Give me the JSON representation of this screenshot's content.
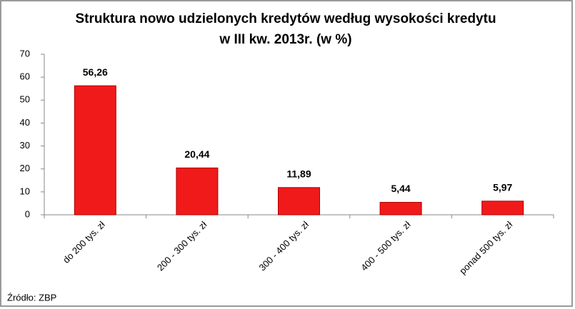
{
  "chart_data": {
    "type": "bar",
    "title_lines": [
      "Struktura nowo udzielonych kredytów według wysokości kredytu",
      "w III kw. 2013r. (w %)"
    ],
    "categories": [
      "do 200 tys. zł",
      "200 - 300 tys. zł",
      "300 - 400 tys. zł",
      "400 - 500 tys. zł",
      "ponad 500 tys. zł"
    ],
    "values": [
      56.26,
      20.44,
      11.89,
      5.44,
      5.97
    ],
    "value_labels": [
      "56,26",
      "20,44",
      "11,89",
      "5,44",
      "5,97"
    ],
    "color": "#f01a1a",
    "ylim": [
      0,
      70
    ],
    "yticks": [
      0,
      10,
      20,
      30,
      40,
      50,
      60,
      70
    ],
    "grid": false,
    "source": "Źródło: ZBP"
  }
}
